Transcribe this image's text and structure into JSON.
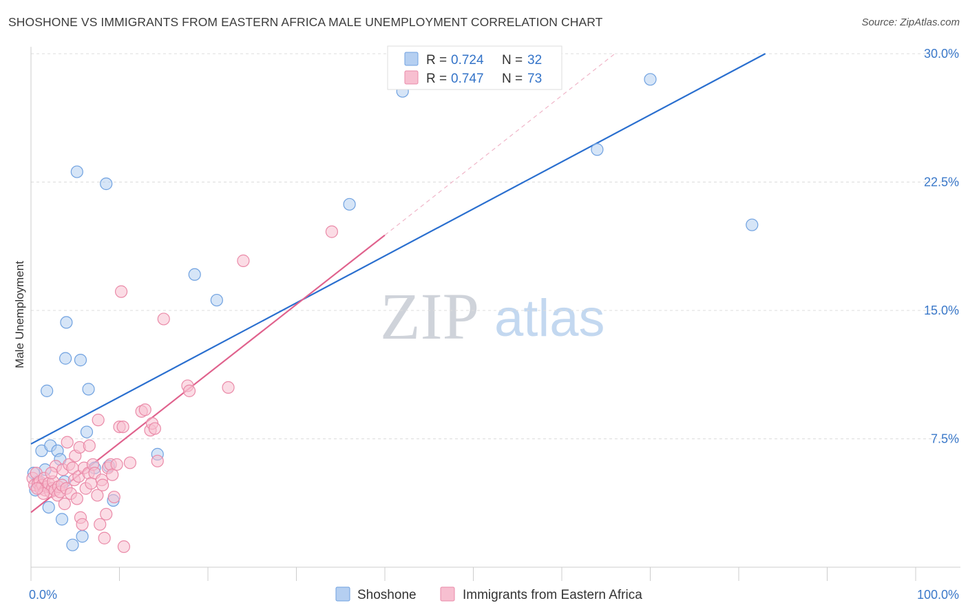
{
  "title": "SHOSHONE VS IMMIGRANTS FROM EASTERN AFRICA MALE UNEMPLOYMENT CORRELATION CHART",
  "source": "Source: ZipAtlas.com",
  "watermark": {
    "zip": "ZIP",
    "atlas": "atlas"
  },
  "chart_data": {
    "type": "scatter",
    "title": "SHOSHONE VS IMMIGRANTS FROM EASTERN AFRICA MALE UNEMPLOYMENT CORRELATION CHART",
    "xlabel": "",
    "ylabel": "Male Unemployment",
    "xlim": [
      0,
      100
    ],
    "ylim": [
      0,
      30
    ],
    "x_tick_labels": [
      "0.0%",
      "100.0%"
    ],
    "y_ticks": [
      7.5,
      15.0,
      22.5,
      30.0
    ],
    "y_tick_labels": [
      "7.5%",
      "15.0%",
      "22.5%",
      "30.0%"
    ],
    "grid": true,
    "legend_top": [
      {
        "r_label": "R =",
        "r_value": "0.724",
        "n_label": "N =",
        "n_value": "32"
      },
      {
        "r_label": "R =",
        "r_value": "0.747",
        "n_label": "N =",
        "n_value": "73"
      }
    ],
    "series": [
      {
        "name": "Shoshone",
        "color": "#6fa1e0",
        "fill": "#b5cff1",
        "line_color": "#2a6fcf",
        "trend": {
          "x0": 0,
          "y0": 7.2,
          "x1": 83,
          "y1": 30.0
        },
        "points": [
          [
            0.3,
            5.5
          ],
          [
            0.5,
            4.5
          ],
          [
            0.8,
            5.0
          ],
          [
            1.2,
            6.8
          ],
          [
            1.6,
            5.7
          ],
          [
            1.8,
            10.3
          ],
          [
            2.0,
            3.5
          ],
          [
            2.2,
            7.1
          ],
          [
            3.0,
            6.8
          ],
          [
            3.3,
            6.3
          ],
          [
            3.5,
            2.8
          ],
          [
            3.8,
            5.0
          ],
          [
            3.9,
            12.2
          ],
          [
            4.0,
            14.3
          ],
          [
            4.7,
            1.3
          ],
          [
            5.2,
            23.1
          ],
          [
            5.6,
            12.1
          ],
          [
            5.8,
            1.8
          ],
          [
            6.3,
            7.9
          ],
          [
            6.5,
            10.4
          ],
          [
            7.2,
            5.8
          ],
          [
            8.5,
            22.4
          ],
          [
            8.8,
            5.9
          ],
          [
            9.3,
            3.9
          ],
          [
            14.3,
            6.6
          ],
          [
            18.5,
            17.1
          ],
          [
            21.0,
            15.6
          ],
          [
            36.0,
            21.2
          ],
          [
            42.0,
            27.8
          ],
          [
            64.0,
            24.4
          ],
          [
            70.0,
            28.5
          ],
          [
            81.5,
            20.0
          ]
        ]
      },
      {
        "name": "Immigrants from Eastern Africa",
        "color": "#ea8aa8",
        "fill": "#f7bfd0",
        "line_color": "#e0628d",
        "trend": {
          "x0": 0,
          "y0": 3.2,
          "x1": 40,
          "y1": 19.4
        },
        "trend_ext": {
          "x0": 40,
          "y0": 19.4,
          "x1": 66,
          "y1": 30.0
        },
        "points": [
          [
            0.2,
            5.2
          ],
          [
            0.4,
            4.8
          ],
          [
            0.6,
            5.5
          ],
          [
            0.8,
            4.9
          ],
          [
            1.0,
            5.0
          ],
          [
            1.1,
            4.6
          ],
          [
            1.3,
            4.8
          ],
          [
            1.5,
            5.2
          ],
          [
            1.6,
            4.5
          ],
          [
            1.8,
            4.7
          ],
          [
            2.0,
            4.9
          ],
          [
            2.2,
            4.4
          ],
          [
            2.4,
            4.6
          ],
          [
            2.5,
            5.0
          ],
          [
            2.7,
            4.5
          ],
          [
            2.8,
            5.9
          ],
          [
            3.0,
            4.2
          ],
          [
            3.1,
            4.7
          ],
          [
            3.3,
            4.4
          ],
          [
            3.5,
            4.8
          ],
          [
            3.6,
            5.7
          ],
          [
            3.8,
            3.7
          ],
          [
            4.0,
            4.6
          ],
          [
            4.1,
            7.3
          ],
          [
            4.3,
            6.0
          ],
          [
            4.5,
            4.3
          ],
          [
            4.7,
            5.8
          ],
          [
            4.9,
            5.1
          ],
          [
            5.0,
            6.5
          ],
          [
            5.2,
            4.0
          ],
          [
            5.4,
            5.3
          ],
          [
            5.5,
            7.0
          ],
          [
            5.6,
            2.9
          ],
          [
            5.8,
            2.5
          ],
          [
            6.0,
            5.8
          ],
          [
            6.2,
            4.6
          ],
          [
            6.5,
            5.5
          ],
          [
            6.6,
            7.1
          ],
          [
            6.8,
            4.9
          ],
          [
            7.0,
            6.0
          ],
          [
            7.2,
            5.5
          ],
          [
            7.5,
            4.2
          ],
          [
            7.6,
            8.6
          ],
          [
            7.8,
            2.5
          ],
          [
            8.0,
            5.1
          ],
          [
            8.1,
            4.8
          ],
          [
            8.3,
            1.7
          ],
          [
            8.5,
            3.1
          ],
          [
            8.7,
            5.8
          ],
          [
            9.0,
            6.0
          ],
          [
            9.2,
            5.4
          ],
          [
            9.4,
            4.1
          ],
          [
            9.7,
            6.0
          ],
          [
            10.0,
            8.2
          ],
          [
            10.2,
            16.1
          ],
          [
            10.4,
            8.2
          ],
          [
            11.2,
            6.1
          ],
          [
            12.5,
            9.1
          ],
          [
            12.9,
            9.2
          ],
          [
            13.5,
            8.0
          ],
          [
            13.7,
            8.4
          ],
          [
            14.0,
            8.1
          ],
          [
            14.3,
            6.2
          ],
          [
            15.0,
            14.5
          ],
          [
            10.5,
            1.2
          ],
          [
            17.7,
            10.6
          ],
          [
            17.9,
            10.3
          ],
          [
            22.3,
            10.5
          ],
          [
            24.0,
            17.9
          ],
          [
            34.0,
            19.6
          ],
          [
            1.4,
            4.3
          ],
          [
            2.3,
            5.5
          ],
          [
            0.7,
            4.6
          ]
        ]
      }
    ]
  }
}
